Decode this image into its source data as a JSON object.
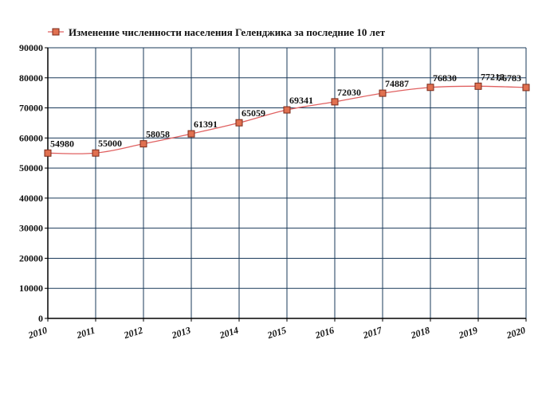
{
  "chart_data": {
    "type": "line",
    "title": "",
    "xlabel": "",
    "ylabel": "",
    "legend": {
      "position": "top-left",
      "entries": [
        "Изменение численности населения Геленджика за последние 10 лет"
      ]
    },
    "x": [
      2010,
      2011,
      2012,
      2013,
      2014,
      2015,
      2016,
      2017,
      2018,
      2019,
      2020
    ],
    "x_tick_labels": [
      "2010",
      "2011",
      "2012",
      "2013",
      "2014",
      "2015",
      "2016",
      "2017",
      "2018",
      "2019",
      "2020"
    ],
    "y_tick_labels": [
      "0",
      "10000",
      "20000",
      "30000",
      "40000",
      "50000",
      "60000",
      "70000",
      "80000",
      "90000"
    ],
    "ylim": [
      0,
      90000
    ],
    "xlim": [
      2010,
      2020
    ],
    "grid": true,
    "series": [
      {
        "name": "Изменение численности населения Геленджика за последние 10 лет",
        "values": [
          54980,
          55000,
          58058,
          61391,
          65059,
          69341,
          72030,
          74887,
          76830,
          77212,
          76783
        ],
        "labels": [
          "54980",
          "55000",
          "58058",
          "61391",
          "65059",
          "69341",
          "72030",
          "74887",
          "76830",
          "77212",
          "76783"
        ]
      }
    ],
    "colors": {
      "line": "#e06060",
      "marker_fill": "#e07050",
      "marker_stroke": "#7a2a1a",
      "grid": "#1a3a5a"
    }
  }
}
